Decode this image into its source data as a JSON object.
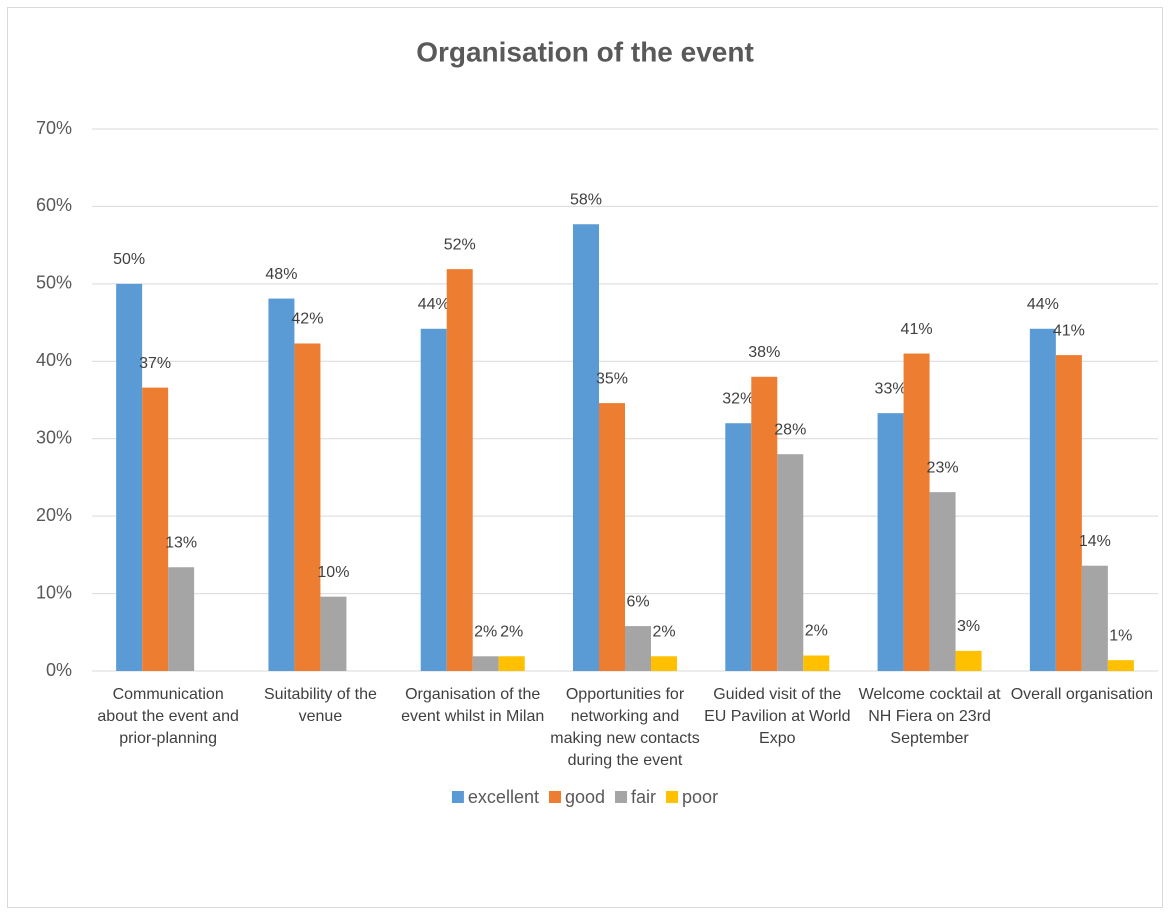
{
  "chart_data": {
    "type": "bar",
    "title": "Organisation of the event",
    "categories": [
      "Communication about the event and prior-planning",
      "Suitability of the venue",
      "Organisation of the event whilst in Milan",
      "Opportunities for networking and making new contacts during the event",
      "Guided visit of the EU Pavilion at World Expo",
      "Welcome cocktail at NH Fiera on 23rd September",
      "Overall organisation"
    ],
    "series": [
      {
        "name": "excellent",
        "color": "#5b9bd5",
        "values": [
          50,
          48.1,
          44.2,
          57.7,
          32,
          33.3,
          44.2
        ],
        "value_labels": [
          "50%",
          "48%",
          "44%",
          "58%",
          "32%",
          "33%",
          "44%"
        ]
      },
      {
        "name": "good",
        "color": "#ed7d31",
        "values": [
          36.6,
          42.3,
          51.9,
          34.6,
          38,
          41,
          40.8
        ],
        "value_labels": [
          "37%",
          "42%",
          "52%",
          "35%",
          "38%",
          "41%",
          "41%"
        ]
      },
      {
        "name": "fair",
        "color": "#a5a5a5",
        "values": [
          13.4,
          9.6,
          1.9,
          5.8,
          28,
          23.1,
          13.6
        ],
        "value_labels": [
          "13%",
          "10%",
          "2%",
          "6%",
          "28%",
          "23%",
          "14%"
        ]
      },
      {
        "name": "poor",
        "color": "#ffc000",
        "values": [
          null,
          null,
          1.9,
          1.9,
          2,
          2.6,
          1.4
        ],
        "value_labels": [
          null,
          null,
          "2%",
          "2%",
          "2%",
          "3%",
          "1%"
        ]
      }
    ],
    "ylim": [
      0,
      70
    ],
    "yticks": [
      {
        "value": 0,
        "label": "0%"
      },
      {
        "value": 10,
        "label": "10%"
      },
      {
        "value": 20,
        "label": "20%"
      },
      {
        "value": 30,
        "label": "30%"
      },
      {
        "value": 40,
        "label": "40%"
      },
      {
        "value": 50,
        "label": "50%"
      },
      {
        "value": 60,
        "label": "60%"
      },
      {
        "value": 70,
        "label": "70%"
      }
    ],
    "grid": true,
    "legend": "bottom"
  }
}
